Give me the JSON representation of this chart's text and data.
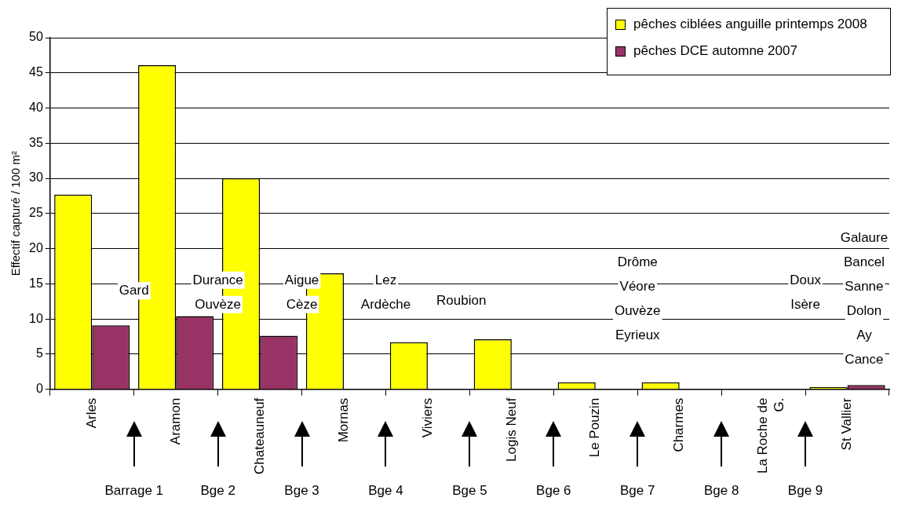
{
  "chart_data": {
    "type": "bar",
    "ylabel": "Effectif capturé / 100 m²",
    "categories": [
      "Arles",
      "Aramon",
      "Chateauneuf",
      "Mornas",
      "Viviers",
      "Logis Neuf",
      "Le Pouzin",
      "Charmes",
      "La Roche de G.",
      "St Vallier"
    ],
    "series": [
      {
        "name": "pêches ciblées anguille printemps 2008",
        "color": "#ffff00",
        "values": [
          27.7,
          46.1,
          30,
          16.5,
          6.7,
          7.1,
          1.0,
          1.0,
          null,
          0.3
        ]
      },
      {
        "name": "pêches DCE automne 2007",
        "color": "#993366",
        "values": [
          9.1,
          10.4,
          7.6,
          0,
          0,
          0,
          0,
          0,
          null,
          0.6
        ]
      }
    ],
    "ylim": [
      0,
      50
    ],
    "yticks": [
      0,
      5,
      10,
      15,
      20,
      25,
      30,
      35,
      40,
      45,
      50
    ],
    "grid": "y",
    "legend": "top right",
    "annotations": [
      "Gard",
      "Durance\nOuvèze",
      "Aigue\nCèze",
      "Lez\nArdèche",
      "Roubion",
      "Drôme\nVéore\nOuvèze\nEyrieux",
      "Doux\nIsère",
      "Galaure\nBancel\nSanne\nDolon\nAy\nCance",
      "Barrage 1",
      "Bge 2",
      "Bge 3",
      "Bge 4",
      "Bge 5",
      "Bge 6",
      "Bge 7",
      "Bge 8",
      "Bge 9"
    ]
  }
}
